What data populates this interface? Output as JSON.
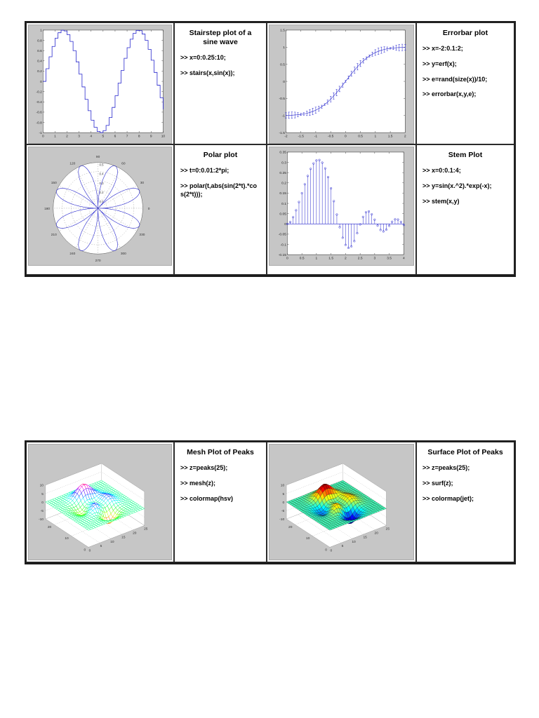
{
  "colors": {
    "plot_line": "#2222cc",
    "figure_bg": "#c6c6c6"
  },
  "panels": [
    {
      "plot_id": "stairs",
      "title": "Stairstep plot of a sine wave",
      "code": [
        ">> x=0:0.25:10;",
        ">> stairs(x,sin(x));"
      ]
    },
    {
      "plot_id": "errorbar",
      "title": "Errorbar plot",
      "code": [
        ">> x=-2:0.1:2;",
        ">> y=erf(x);",
        ">> e=rand(size(x))/10;",
        ">> errorbar(x,y,e);"
      ]
    },
    {
      "plot_id": "polar",
      "title": "Polar plot",
      "code": [
        ">> t=0:0.01:2*pi;",
        ">> polar(t,abs(sin(2*t).*cos(2*t)));"
      ]
    },
    {
      "plot_id": "stem",
      "title": "Stem Plot",
      "code": [
        ">> x=0:0.1:4;",
        ">> y=sin(x.^2).*exp(-x);",
        ">> stem(x,y)"
      ]
    },
    {
      "plot_id": "mesh",
      "title": "Mesh Plot of Peaks",
      "code": [
        ">> z=peaks(25);",
        ">> mesh(z);",
        ">> colormap(hsv)"
      ]
    },
    {
      "plot_id": "surf",
      "title": "Surface Plot of Peaks",
      "code": [
        ">> z=peaks(25);",
        ">> surf(z);",
        ">> colormap(jet);"
      ]
    }
  ],
  "chart_data": [
    {
      "id": "stairs",
      "type": "line",
      "style": "stairs",
      "title": "Stairstep plot of a sine wave",
      "x_start": 0,
      "x_step": 0.25,
      "x_end": 10,
      "formula": "sin(x)",
      "xlim": [
        0,
        10
      ],
      "ylim": [
        -1,
        1
      ],
      "xticks": [
        0,
        1,
        2,
        3,
        4,
        5,
        6,
        7,
        8,
        9,
        10
      ],
      "yticks": [
        -1,
        -0.8,
        -0.6,
        -0.4,
        -0.2,
        0,
        0.2,
        0.4,
        0.6,
        0.8,
        1
      ],
      "line_color": "#2222cc"
    },
    {
      "id": "errorbar",
      "type": "line",
      "style": "errorbar",
      "title": "Errorbar plot",
      "x_start": -2,
      "x_step": 0.1,
      "x_end": 2,
      "formula": "erf(x)",
      "error_scale": 0.1,
      "xlim": [
        -2,
        2
      ],
      "ylim": [
        -1.5,
        1.5
      ],
      "xticks": [
        -2,
        -1.5,
        -1,
        -0.5,
        0,
        0.5,
        1,
        1.5,
        2
      ],
      "yticks": [
        -1.5,
        -1,
        -0.5,
        0,
        0.5,
        1,
        1.5
      ],
      "line_color": "#2222cc"
    },
    {
      "id": "polar",
      "type": "line",
      "style": "polar",
      "title": "Polar plot",
      "t_start": 0,
      "t_step": 0.01,
      "t_end": 6.28,
      "formula": "abs(sin(2*t).*cos(2*t))",
      "r_max": 0.5,
      "rticks": [
        0.1,
        0.2,
        0.3,
        0.4,
        0.5
      ],
      "angle_ticks": [
        0,
        30,
        60,
        90,
        120,
        150,
        180,
        210,
        240,
        270,
        300,
        330
      ],
      "line_color": "#2222cc"
    },
    {
      "id": "stem",
      "type": "scatter",
      "style": "stem",
      "title": "Stem Plot",
      "x_start": 0,
      "x_step": 0.1,
      "x_end": 4,
      "formula": "sin(x.^2).*exp(-x)",
      "xlim": [
        0,
        4
      ],
      "ylim": [
        -0.15,
        0.35
      ],
      "xticks": [
        0,
        0.5,
        1,
        1.5,
        2,
        2.5,
        3,
        3.5,
        4
      ],
      "yticks": [
        -0.15,
        -0.1,
        -0.05,
        0,
        0.05,
        0.1,
        0.15,
        0.2,
        0.25,
        0.3,
        0.35
      ],
      "line_color": "#2222cc"
    },
    {
      "id": "mesh",
      "type": "heatmap",
      "style": "mesh3d",
      "title": "Mesh Plot of Peaks",
      "grid": 25,
      "formula": "peaks(25)",
      "colormap": "hsv",
      "zlim": [
        -10,
        10
      ],
      "xticks": [
        0,
        5,
        10,
        15,
        20,
        25
      ],
      "yticks": [
        0,
        10,
        20
      ],
      "zticks": [
        -10,
        -5,
        0,
        5,
        10
      ]
    },
    {
      "id": "surf",
      "type": "heatmap",
      "style": "surf3d",
      "title": "Surface Plot of Peaks",
      "grid": 25,
      "formula": "peaks(25)",
      "colormap": "jet",
      "zlim": [
        -10,
        10
      ],
      "xticks": [
        0,
        5,
        10,
        15,
        20,
        25
      ],
      "yticks": [
        0,
        10,
        20
      ],
      "zticks": [
        -10,
        -5,
        0,
        5,
        10
      ]
    }
  ]
}
